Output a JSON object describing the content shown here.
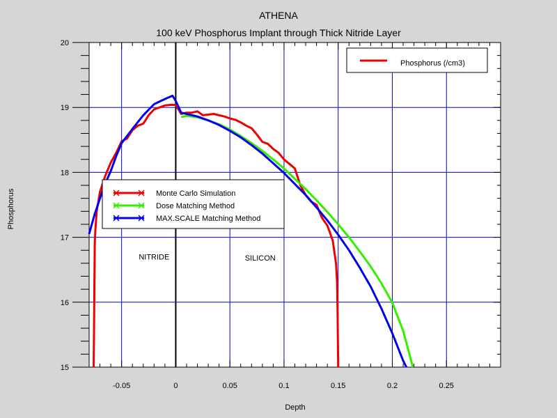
{
  "chart_data": {
    "type": "line",
    "title": "ATHENA",
    "subtitle": "100 keV Phosphorus Implant through Thick Nitride Layer",
    "xlabel": "Depth",
    "ylabel": "Phosphorus",
    "xlim": [
      -0.08,
      0.3
    ],
    "ylim": [
      15,
      20
    ],
    "x_ticks": [
      -0.05,
      0,
      0.05,
      0.1,
      0.15,
      0.2,
      0.25
    ],
    "x_tick_labels": [
      "-0.05",
      "0",
      "0.05",
      "0.1",
      "0.15",
      "0.2",
      "0.25"
    ],
    "y_ticks": [
      15,
      16,
      17,
      18,
      19,
      20
    ],
    "y_tick_labels": [
      "15",
      "16",
      "17",
      "18",
      "19",
      "20"
    ],
    "grid": true,
    "interface_x": 0,
    "legend_top_right": {
      "entries": [
        {
          "label": "Phosphorus (/cm3)",
          "color": "#ee0000"
        }
      ]
    },
    "legend_series": {
      "placement": "middle-left"
    },
    "annotations": [
      {
        "text": "NITRIDE",
        "x": -0.02,
        "y": 16.66
      },
      {
        "text": "SILICON",
        "x": 0.078,
        "y": 16.64
      }
    ],
    "series": [
      {
        "name": "Monte Carlo Simulation",
        "color": "#ee0000",
        "x": [
          -0.0758,
          -0.0755,
          -0.0752,
          -0.0748,
          -0.0743,
          -0.073,
          -0.07,
          -0.065,
          -0.06,
          -0.055,
          -0.05,
          -0.045,
          -0.04,
          -0.035,
          -0.03,
          -0.025,
          -0.02,
          -0.015,
          -0.01,
          -0.005,
          0,
          0.005,
          0.01,
          0.015,
          0.02,
          0.025,
          0.03,
          0.035,
          0.04,
          0.045,
          0.05,
          0.055,
          0.06,
          0.065,
          0.07,
          0.075,
          0.08,
          0.085,
          0.09,
          0.095,
          0.1,
          0.105,
          0.11,
          0.115,
          0.12,
          0.125,
          0.13,
          0.135,
          0.14,
          0.145,
          0.148,
          0.149,
          0.1495,
          0.15
        ],
        "values": [
          15,
          15.5,
          16.2,
          16.9,
          17.1,
          17.4,
          17.7,
          17.95,
          18.15,
          18.3,
          18.48,
          18.52,
          18.65,
          18.72,
          18.75,
          18.88,
          18.97,
          19.0,
          19.03,
          19.04,
          19.04,
          18.9,
          18.92,
          18.92,
          18.94,
          18.88,
          18.89,
          18.9,
          18.88,
          18.86,
          18.83,
          18.81,
          18.77,
          18.72,
          18.68,
          18.58,
          18.47,
          18.44,
          18.36,
          18.3,
          18.2,
          18.13,
          18.06,
          17.8,
          17.65,
          17.55,
          17.5,
          17.3,
          17.18,
          16.95,
          16.6,
          16.3,
          15.8,
          15
        ]
      },
      {
        "name": "Dose Matching Method",
        "color": "#33ee00",
        "x": [
          0.005,
          0.01,
          0.02,
          0.03,
          0.04,
          0.05,
          0.06,
          0.07,
          0.08,
          0.09,
          0.1,
          0.11,
          0.12,
          0.13,
          0.14,
          0.15,
          0.16,
          0.17,
          0.18,
          0.19,
          0.2,
          0.21,
          0.219
        ],
        "values": [
          18.85,
          18.87,
          18.85,
          18.8,
          18.74,
          18.66,
          18.56,
          18.45,
          18.33,
          18.2,
          18.06,
          17.9,
          17.74,
          17.57,
          17.39,
          17.2,
          17.0,
          16.78,
          16.55,
          16.29,
          15.99,
          15.56,
          15
        ]
      },
      {
        "name": "MAX.SCALE Matching Method",
        "color": "#0000ee",
        "x": [
          -0.08,
          -0.075,
          -0.07,
          -0.065,
          -0.06,
          -0.055,
          -0.05,
          -0.04,
          -0.03,
          -0.02,
          -0.01,
          -0.003,
          0,
          0.005,
          0.01,
          0.02,
          0.03,
          0.04,
          0.05,
          0.06,
          0.07,
          0.08,
          0.09,
          0.1,
          0.11,
          0.12,
          0.13,
          0.14,
          0.15,
          0.16,
          0.17,
          0.18,
          0.19,
          0.2,
          0.21,
          0.213
        ],
        "values": [
          17.05,
          17.35,
          17.6,
          17.83,
          18.02,
          18.25,
          18.45,
          18.67,
          18.88,
          19.05,
          19.13,
          19.18,
          19.1,
          18.92,
          18.9,
          18.86,
          18.8,
          18.73,
          18.64,
          18.54,
          18.42,
          18.29,
          18.14,
          17.99,
          17.82,
          17.65,
          17.46,
          17.26,
          17.04,
          16.8,
          16.53,
          16.24,
          15.9,
          15.52,
          15.1,
          15
        ]
      }
    ]
  }
}
